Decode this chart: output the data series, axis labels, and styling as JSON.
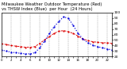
{
  "hours": [
    0,
    1,
    2,
    3,
    4,
    5,
    6,
    7,
    8,
    9,
    10,
    11,
    12,
    13,
    14,
    15,
    16,
    17,
    18,
    19,
    20,
    21,
    22,
    23
  ],
  "temp_red": [
    43,
    42,
    40,
    39,
    38,
    37,
    37,
    38,
    44,
    50,
    56,
    62,
    66,
    67,
    65,
    62,
    57,
    52,
    49,
    47,
    46,
    45,
    45,
    44
  ],
  "thsw_blue": [
    32,
    30,
    28,
    27,
    26,
    25,
    25,
    27,
    36,
    48,
    62,
    74,
    84,
    92,
    89,
    76,
    62,
    52,
    45,
    41,
    38,
    36,
    34,
    32
  ],
  "title_line1": "Milwaukee Weather Outdoor Temperature (Red)",
  "title_line2": "vs THSW Index (Blue)  per Hour  (24 Hours)",
  "title_fontsize": 3.8,
  "xlim": [
    0,
    23
  ],
  "ylim": [
    20,
    100
  ],
  "ytick_labels": [
    "8.",
    "4.",
    "5.",
    "6.",
    "7.",
    "8.",
    "9.",
    "1"
  ],
  "ytick_fontsize": 3.2,
  "xtick_fontsize": 2.8,
  "red_color": "#dd0000",
  "blue_color": "#0000dd",
  "background_color": "#ffffff",
  "grid_color": "#888888",
  "grid_linestyle": "--",
  "grid_linewidth": 0.35
}
